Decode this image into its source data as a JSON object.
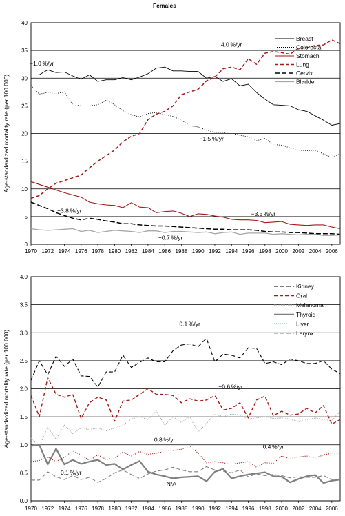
{
  "chart_data": [
    {
      "type": "line",
      "title": "Females",
      "ylabel": "Age-standardized mortality rate (per 100 000)",
      "xlabel": "",
      "ylim": [
        0,
        40
      ],
      "yticks": [
        "0",
        "5",
        "10",
        "15",
        "20",
        "25",
        "30",
        "35",
        "40"
      ],
      "ytick_values": [
        0,
        5,
        10,
        15,
        20,
        25,
        30,
        35,
        40
      ],
      "x_ticks": [
        "1970",
        "1972",
        "1974",
        "1976",
        "1978",
        "1980",
        "1982",
        "1984",
        "1986",
        "1988",
        "1990",
        "1992",
        "1994",
        "1996",
        "1998",
        "2000",
        "2002",
        "2004",
        "2006"
      ],
      "x": [
        1970,
        1971,
        1972,
        1973,
        1974,
        1975,
        1976,
        1977,
        1978,
        1979,
        1980,
        1981,
        1982,
        1983,
        1984,
        1985,
        1986,
        1987,
        1988,
        1989,
        1990,
        1991,
        1992,
        1993,
        1994,
        1995,
        1996,
        1997,
        1998,
        1999,
        2000,
        2001,
        2002,
        2003,
        2004,
        2005,
        2006,
        2007
      ],
      "xlim": [
        1970,
        2007
      ],
      "grid": "horizontal",
      "legend_position": "top-right",
      "series": [
        {
          "name": "Breast",
          "color": "#000000",
          "dash": "solid",
          "width": 0.9,
          "values": [
            30.6,
            30.6,
            31.5,
            31.0,
            31.1,
            30.4,
            29.8,
            30.6,
            29.4,
            29.7,
            29.7,
            30.1,
            29.7,
            30.2,
            30.8,
            31.8,
            32.0,
            31.3,
            31.3,
            31.2,
            31.2,
            30.0,
            30.3,
            29.4,
            29.9,
            28.6,
            28.9,
            27.4,
            26.2,
            25.2,
            25.1,
            25.0,
            24.3,
            24.0,
            23.2,
            22.4,
            21.5,
            21.8
          ]
        },
        {
          "name": "Colorectal",
          "color": "#000000",
          "dash": "1,2",
          "width": 0.9,
          "values": [
            28.7,
            27.1,
            27.4,
            27.2,
            27.5,
            25.2,
            25.0,
            25.0,
            25.2,
            26.0,
            25.2,
            24.1,
            23.4,
            23.0,
            23.6,
            23.8,
            23.4,
            23.1,
            22.4,
            21.4,
            21.2,
            20.6,
            20.2,
            20.2,
            20.0,
            19.7,
            19.4,
            18.7,
            19.1,
            18.0,
            17.9,
            17.4,
            17.0,
            16.9,
            17.0,
            16.3,
            15.7,
            16.3
          ]
        },
        {
          "name": "Stomach",
          "color": "#a31a16",
          "dash": "solid",
          "width": 1.1,
          "values": [
            11.3,
            10.8,
            10.3,
            9.8,
            9.3,
            8.9,
            8.5,
            7.6,
            7.3,
            7.1,
            7.0,
            6.6,
            7.5,
            6.7,
            6.6,
            5.7,
            5.9,
            6.0,
            5.6,
            5.0,
            5.5,
            5.4,
            5.1,
            4.9,
            4.5,
            4.4,
            4.4,
            4.3,
            3.9,
            4.0,
            4.1,
            3.6,
            3.5,
            3.4,
            3.5,
            3.5,
            3.1,
            2.8
          ]
        },
        {
          "name": "Lung",
          "color": "#a31a16",
          "dash": "5,3",
          "width": 1.5,
          "values": [
            8.3,
            8.8,
            10.0,
            11.0,
            11.5,
            12.0,
            12.5,
            13.8,
            15.0,
            16.0,
            17.0,
            18.5,
            19.5,
            20.0,
            22.5,
            23.5,
            24.0,
            25.0,
            27.0,
            27.5,
            28.0,
            29.5,
            30.2,
            31.7,
            32.0,
            31.5,
            33.5,
            32.5,
            34.5,
            34.8,
            34.6,
            34.3,
            35.4,
            35.5,
            35.9,
            36.0,
            36.9,
            36.2
          ]
        },
        {
          "name": "Cervix",
          "color": "#000000",
          "dash": "7,3",
          "width": 1.5,
          "values": [
            7.6,
            7.0,
            6.4,
            5.7,
            5.2,
            4.7,
            4.4,
            4.7,
            4.5,
            4.2,
            4.0,
            3.7,
            3.7,
            3.5,
            3.4,
            3.3,
            3.3,
            3.2,
            3.1,
            3.0,
            2.9,
            2.8,
            2.7,
            2.7,
            2.6,
            2.6,
            2.6,
            2.5,
            2.3,
            2.2,
            2.2,
            2.1,
            2.1,
            2.0,
            1.9,
            1.9,
            1.9,
            1.8
          ]
        },
        {
          "name": "Bladder",
          "color": "#a6a6a6",
          "dash": "solid",
          "width": 1.3,
          "values": [
            2.8,
            2.6,
            2.5,
            2.6,
            2.7,
            2.8,
            2.3,
            2.5,
            2.1,
            2.3,
            2.5,
            2.4,
            2.3,
            2.1,
            2.4,
            2.4,
            2.1,
            2.3,
            2.3,
            2.2,
            2.1,
            2.2,
            1.9,
            2.1,
            2.2,
            1.8,
            2.0,
            2.0,
            2.0,
            1.8,
            1.9,
            1.8,
            1.7,
            1.8,
            1.8,
            1.6,
            1.6,
            1.7
          ]
        }
      ],
      "annotations": [
        {
          "text": "−1.0 %/yr",
          "x": 1971.3,
          "y": 32.3
        },
        {
          "text": "4.0 %/yr",
          "x": 1994.0,
          "y": 35.7
        },
        {
          "text": "−1.5 %/yr",
          "x": 1991.6,
          "y": 18.7
        },
        {
          "text": "−3.8 %/yr",
          "x": 1974.6,
          "y": 5.7
        },
        {
          "text": "−3.5 %/yr",
          "x": 1997.8,
          "y": 5.1
        },
        {
          "text": "−0.7 %/yr",
          "x": 1986.7,
          "y": 0.8
        }
      ]
    },
    {
      "type": "line",
      "title": "",
      "ylabel": "Age-standardized mortality rate (per 100 000)",
      "xlabel": "",
      "ylim": [
        0,
        4
      ],
      "yticks": [
        "0.0",
        "0.5",
        "1.0",
        "1.5",
        "2.0",
        "2.5",
        "3.0",
        "3.5",
        "4.0"
      ],
      "ytick_values": [
        0,
        0.5,
        1.0,
        1.5,
        2.0,
        2.5,
        3.0,
        3.5,
        4.0
      ],
      "x_ticks": [
        "1970",
        "1972",
        "1974",
        "1976",
        "1978",
        "1980",
        "1982",
        "1984",
        "1986",
        "1988",
        "1990",
        "1992",
        "1994",
        "1996",
        "1998",
        "2000",
        "2002",
        "2004",
        "2006"
      ],
      "x": [
        1970,
        1971,
        1972,
        1973,
        1974,
        1975,
        1976,
        1977,
        1978,
        1979,
        1980,
        1981,
        1982,
        1983,
        1984,
        1985,
        1986,
        1987,
        1988,
        1989,
        1990,
        1991,
        1992,
        1993,
        1994,
        1995,
        1996,
        1997,
        1998,
        1999,
        2000,
        2001,
        2002,
        2003,
        2004,
        2005,
        2006,
        2007
      ],
      "xlim": [
        1970,
        2007
      ],
      "grid": "horizontal",
      "legend_position": "top-right",
      "series": [
        {
          "name": "Kidney",
          "color": "#000000",
          "dash": "6,3",
          "width": 1.1,
          "values": [
            2.15,
            2.5,
            2.25,
            2.58,
            2.4,
            2.53,
            2.23,
            2.22,
            2.03,
            2.3,
            2.3,
            2.6,
            2.38,
            2.47,
            2.55,
            2.48,
            2.48,
            2.68,
            2.78,
            2.8,
            2.75,
            2.9,
            2.48,
            2.62,
            2.6,
            2.55,
            2.73,
            2.72,
            2.45,
            2.48,
            2.43,
            2.53,
            2.5,
            2.45,
            2.45,
            2.5,
            2.35,
            2.27
          ]
        },
        {
          "name": "Oral",
          "color": "#a31a16",
          "dash": "5,3",
          "width": 1.4,
          "values": [
            1.88,
            1.5,
            2.2,
            1.9,
            1.85,
            1.9,
            1.47,
            1.75,
            1.85,
            1.8,
            1.42,
            1.78,
            1.8,
            1.9,
            2.0,
            1.9,
            1.9,
            1.88,
            1.75,
            1.82,
            1.78,
            1.8,
            1.88,
            1.62,
            1.65,
            1.75,
            1.48,
            1.8,
            1.87,
            1.52,
            1.6,
            1.53,
            1.55,
            1.65,
            1.57,
            1.7,
            1.37,
            1.45
          ]
        },
        {
          "name": "Melanoma",
          "color": "#a6a6a6",
          "dash": "1,1.5",
          "width": 1.2,
          "values": [
            1.12,
            0.97,
            1.32,
            1.1,
            1.35,
            1.2,
            1.3,
            1.27,
            1.3,
            1.25,
            1.3,
            1.35,
            1.46,
            1.5,
            1.45,
            1.6,
            1.35,
            1.5,
            1.4,
            1.5,
            1.23,
            1.38,
            1.55,
            1.5,
            1.55,
            1.53,
            1.46,
            1.48,
            1.5,
            1.47,
            1.48,
            1.46,
            1.41,
            1.45,
            1.48,
            1.45,
            1.43,
            1.6
          ]
        },
        {
          "name": "Thyroid",
          "color": "#7f7f7f",
          "dash": "solid",
          "width": 2.2,
          "values": [
            0.98,
            1.0,
            0.65,
            0.93,
            0.65,
            0.73,
            0.66,
            0.7,
            0.73,
            0.64,
            0.66,
            0.56,
            0.64,
            0.71,
            0.52,
            0.47,
            0.44,
            0.4,
            0.42,
            0.43,
            0.44,
            0.35,
            0.52,
            0.57,
            0.4,
            0.44,
            0.47,
            0.49,
            0.51,
            0.44,
            0.43,
            0.33,
            0.39,
            0.44,
            0.46,
            0.32,
            0.36,
            0.38
          ]
        },
        {
          "name": "Liver",
          "color": "#a31a16",
          "dash": "1,2",
          "width": 1.2,
          "values": [
            0.7,
            0.72,
            0.78,
            0.7,
            0.78,
            0.89,
            0.82,
            0.72,
            0.82,
            0.74,
            0.76,
            0.87,
            0.8,
            0.88,
            0.83,
            0.85,
            0.88,
            0.9,
            0.92,
            0.98,
            0.85,
            0.68,
            0.7,
            0.68,
            0.65,
            0.68,
            0.7,
            0.6,
            0.68,
            0.67,
            0.8,
            0.75,
            0.78,
            0.8,
            0.76,
            0.82,
            0.85,
            0.84
          ]
        },
        {
          "name": "Larynx",
          "color": "#7f7f7f",
          "dash": "6,3",
          "width": 1.1,
          "values": [
            0.37,
            0.37,
            0.52,
            0.43,
            0.38,
            0.45,
            0.38,
            0.42,
            0.33,
            0.4,
            0.5,
            0.55,
            0.47,
            0.4,
            0.48,
            0.53,
            0.55,
            0.6,
            0.55,
            0.52,
            0.52,
            0.61,
            0.55,
            0.53,
            0.5,
            0.55,
            0.43,
            0.48,
            0.45,
            0.47,
            0.45,
            0.41,
            0.43,
            0.42,
            0.42,
            0.45,
            0.38,
            0.38
          ]
        }
      ],
      "annotations": [
        {
          "text": "−0.1 %/yr",
          "x": 1988.8,
          "y": 3.12
        },
        {
          "text": "−0.6 %/yr",
          "x": 1993.9,
          "y": 2.0
        },
        {
          "text": "0.8 %/yr",
          "x": 1986.0,
          "y": 1.05
        },
        {
          "text": "0.4 %/yr",
          "x": 1999.0,
          "y": 0.93
        },
        {
          "text": "0.1 %/yr",
          "x": 1974.8,
          "y": 0.47
        },
        {
          "text": "N/A",
          "x": 1986.8,
          "y": 0.27
        }
      ]
    }
  ]
}
